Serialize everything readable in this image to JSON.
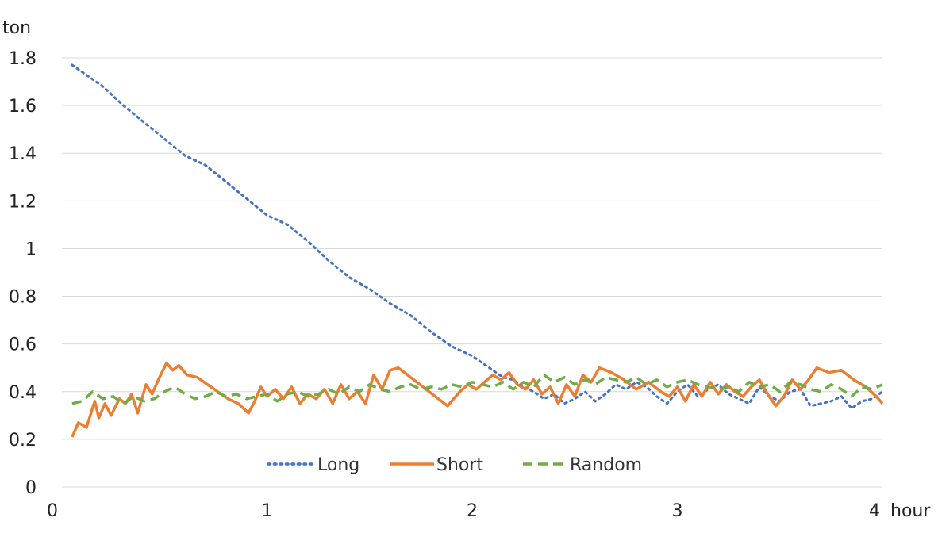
{
  "chart_data": {
    "type": "line",
    "title": "",
    "xlabel": "hour",
    "ylabel": "ton",
    "xlim": [
      0,
      4
    ],
    "ylim": [
      0,
      1.8
    ],
    "x_ticks": [
      {
        "value": 0,
        "label": "0"
      },
      {
        "value": 1,
        "label": "1"
      },
      {
        "value": 2,
        "label": "2"
      },
      {
        "value": 3,
        "label": "3"
      },
      {
        "value": 4,
        "label": "4"
      }
    ],
    "y_ticks": [
      {
        "value": 0,
        "label": "0"
      },
      {
        "value": 0.2,
        "label": "0.2"
      },
      {
        "value": 0.4,
        "label": "0.4"
      },
      {
        "value": 0.6,
        "label": "0.6"
      },
      {
        "value": 0.8,
        "label": "0.8"
      },
      {
        "value": 1.0,
        "label": "1"
      },
      {
        "value": 1.2,
        "label": "1.2"
      },
      {
        "value": 1.4,
        "label": "1.4"
      },
      {
        "value": 1.6,
        "label": "1.6"
      },
      {
        "value": 1.8,
        "label": "1.8"
      }
    ],
    "grid": "horizontal",
    "legend_position": "bottom",
    "series": [
      {
        "name": "Long",
        "color": "#4472C4",
        "style": "dotted",
        "points": [
          [
            0.05,
            1.77
          ],
          [
            0.1,
            1.74
          ],
          [
            0.2,
            1.68
          ],
          [
            0.3,
            1.6
          ],
          [
            0.4,
            1.53
          ],
          [
            0.5,
            1.46
          ],
          [
            0.6,
            1.39
          ],
          [
            0.7,
            1.35
          ],
          [
            0.8,
            1.28
          ],
          [
            0.9,
            1.21
          ],
          [
            1.0,
            1.14
          ],
          [
            1.1,
            1.1
          ],
          [
            1.2,
            1.03
          ],
          [
            1.3,
            0.95
          ],
          [
            1.4,
            0.88
          ],
          [
            1.5,
            0.83
          ],
          [
            1.6,
            0.77
          ],
          [
            1.7,
            0.72
          ],
          [
            1.8,
            0.65
          ],
          [
            1.9,
            0.59
          ],
          [
            2.0,
            0.55
          ],
          [
            2.05,
            0.52
          ],
          [
            2.1,
            0.49
          ],
          [
            2.15,
            0.46
          ],
          [
            2.2,
            0.45
          ],
          [
            2.25,
            0.42
          ],
          [
            2.3,
            0.4
          ],
          [
            2.35,
            0.37
          ],
          [
            2.4,
            0.39
          ],
          [
            2.45,
            0.35
          ],
          [
            2.5,
            0.37
          ],
          [
            2.55,
            0.4
          ],
          [
            2.6,
            0.36
          ],
          [
            2.65,
            0.39
          ],
          [
            2.7,
            0.43
          ],
          [
            2.75,
            0.41
          ],
          [
            2.8,
            0.44
          ],
          [
            2.85,
            0.42
          ],
          [
            2.9,
            0.38
          ],
          [
            2.95,
            0.35
          ],
          [
            3.0,
            0.4
          ],
          [
            3.05,
            0.43
          ],
          [
            3.1,
            0.38
          ],
          [
            3.15,
            0.41
          ],
          [
            3.2,
            0.43
          ],
          [
            3.25,
            0.39
          ],
          [
            3.3,
            0.37
          ],
          [
            3.35,
            0.35
          ],
          [
            3.4,
            0.42
          ],
          [
            3.45,
            0.38
          ],
          [
            3.5,
            0.36
          ],
          [
            3.55,
            0.4
          ],
          [
            3.6,
            0.41
          ],
          [
            3.65,
            0.34
          ],
          [
            3.7,
            0.35
          ],
          [
            3.75,
            0.36
          ],
          [
            3.8,
            0.38
          ],
          [
            3.85,
            0.33
          ],
          [
            3.9,
            0.36
          ],
          [
            3.95,
            0.37
          ],
          [
            4.0,
            0.4
          ]
        ]
      },
      {
        "name": "Short",
        "color": "#ED7D31",
        "style": "solid",
        "points": [
          [
            0.05,
            0.21
          ],
          [
            0.08,
            0.27
          ],
          [
            0.12,
            0.25
          ],
          [
            0.16,
            0.36
          ],
          [
            0.18,
            0.29
          ],
          [
            0.21,
            0.35
          ],
          [
            0.24,
            0.3
          ],
          [
            0.28,
            0.37
          ],
          [
            0.31,
            0.35
          ],
          [
            0.34,
            0.39
          ],
          [
            0.37,
            0.31
          ],
          [
            0.41,
            0.43
          ],
          [
            0.44,
            0.39
          ],
          [
            0.47,
            0.45
          ],
          [
            0.51,
            0.52
          ],
          [
            0.54,
            0.49
          ],
          [
            0.57,
            0.51
          ],
          [
            0.61,
            0.47
          ],
          [
            0.66,
            0.46
          ],
          [
            0.71,
            0.43
          ],
          [
            0.76,
            0.4
          ],
          [
            0.81,
            0.37
          ],
          [
            0.86,
            0.35
          ],
          [
            0.91,
            0.31
          ],
          [
            0.94,
            0.36
          ],
          [
            0.97,
            0.42
          ],
          [
            1.0,
            0.38
          ],
          [
            1.04,
            0.41
          ],
          [
            1.08,
            0.37
          ],
          [
            1.12,
            0.42
          ],
          [
            1.16,
            0.35
          ],
          [
            1.2,
            0.39
          ],
          [
            1.24,
            0.37
          ],
          [
            1.28,
            0.41
          ],
          [
            1.32,
            0.35
          ],
          [
            1.36,
            0.43
          ],
          [
            1.4,
            0.37
          ],
          [
            1.44,
            0.4
          ],
          [
            1.48,
            0.35
          ],
          [
            1.52,
            0.47
          ],
          [
            1.56,
            0.41
          ],
          [
            1.6,
            0.49
          ],
          [
            1.64,
            0.5
          ],
          [
            1.7,
            0.46
          ],
          [
            1.76,
            0.42
          ],
          [
            1.82,
            0.38
          ],
          [
            1.88,
            0.34
          ],
          [
            1.94,
            0.4
          ],
          [
            1.98,
            0.43
          ],
          [
            2.02,
            0.41
          ],
          [
            2.06,
            0.44
          ],
          [
            2.1,
            0.47
          ],
          [
            2.14,
            0.45
          ],
          [
            2.18,
            0.48
          ],
          [
            2.22,
            0.43
          ],
          [
            2.26,
            0.41
          ],
          [
            2.3,
            0.45
          ],
          [
            2.34,
            0.39
          ],
          [
            2.38,
            0.42
          ],
          [
            2.42,
            0.35
          ],
          [
            2.46,
            0.43
          ],
          [
            2.5,
            0.38
          ],
          [
            2.54,
            0.47
          ],
          [
            2.58,
            0.44
          ],
          [
            2.62,
            0.5
          ],
          [
            2.68,
            0.48
          ],
          [
            2.74,
            0.45
          ],
          [
            2.8,
            0.41
          ],
          [
            2.86,
            0.44
          ],
          [
            2.92,
            0.4
          ],
          [
            2.96,
            0.38
          ],
          [
            3.0,
            0.42
          ],
          [
            3.04,
            0.36
          ],
          [
            3.08,
            0.43
          ],
          [
            3.12,
            0.38
          ],
          [
            3.16,
            0.44
          ],
          [
            3.2,
            0.39
          ],
          [
            3.24,
            0.43
          ],
          [
            3.28,
            0.4
          ],
          [
            3.32,
            0.38
          ],
          [
            3.36,
            0.42
          ],
          [
            3.4,
            0.45
          ],
          [
            3.44,
            0.39
          ],
          [
            3.48,
            0.34
          ],
          [
            3.52,
            0.38
          ],
          [
            3.56,
            0.45
          ],
          [
            3.6,
            0.41
          ],
          [
            3.64,
            0.45
          ],
          [
            3.68,
            0.5
          ],
          [
            3.74,
            0.48
          ],
          [
            3.8,
            0.49
          ],
          [
            3.86,
            0.45
          ],
          [
            3.92,
            0.42
          ],
          [
            3.97,
            0.38
          ],
          [
            4.0,
            0.35
          ]
        ]
      },
      {
        "name": "Random",
        "color": "#70AD47",
        "style": "dashed",
        "points": [
          [
            0.05,
            0.35
          ],
          [
            0.1,
            0.36
          ],
          [
            0.15,
            0.4
          ],
          [
            0.2,
            0.37
          ],
          [
            0.25,
            0.38
          ],
          [
            0.3,
            0.35
          ],
          [
            0.35,
            0.38
          ],
          [
            0.4,
            0.36
          ],
          [
            0.45,
            0.37
          ],
          [
            0.5,
            0.4
          ],
          [
            0.55,
            0.42
          ],
          [
            0.6,
            0.39
          ],
          [
            0.65,
            0.37
          ],
          [
            0.7,
            0.38
          ],
          [
            0.75,
            0.4
          ],
          [
            0.8,
            0.38
          ],
          [
            0.85,
            0.39
          ],
          [
            0.9,
            0.37
          ],
          [
            0.95,
            0.38
          ],
          [
            1.0,
            0.39
          ],
          [
            1.05,
            0.36
          ],
          [
            1.1,
            0.39
          ],
          [
            1.15,
            0.4
          ],
          [
            1.2,
            0.38
          ],
          [
            1.25,
            0.39
          ],
          [
            1.3,
            0.41
          ],
          [
            1.35,
            0.39
          ],
          [
            1.4,
            0.42
          ],
          [
            1.45,
            0.4
          ],
          [
            1.5,
            0.43
          ],
          [
            1.55,
            0.41
          ],
          [
            1.6,
            0.4
          ],
          [
            1.65,
            0.42
          ],
          [
            1.7,
            0.43
          ],
          [
            1.75,
            0.41
          ],
          [
            1.8,
            0.42
          ],
          [
            1.85,
            0.41
          ],
          [
            1.9,
            0.43
          ],
          [
            1.95,
            0.42
          ],
          [
            2.0,
            0.44
          ],
          [
            2.05,
            0.43
          ],
          [
            2.1,
            0.42
          ],
          [
            2.15,
            0.44
          ],
          [
            2.2,
            0.41
          ],
          [
            2.25,
            0.44
          ],
          [
            2.3,
            0.42
          ],
          [
            2.35,
            0.47
          ],
          [
            2.4,
            0.44
          ],
          [
            2.45,
            0.46
          ],
          [
            2.5,
            0.43
          ],
          [
            2.55,
            0.45
          ],
          [
            2.6,
            0.43
          ],
          [
            2.65,
            0.46
          ],
          [
            2.7,
            0.45
          ],
          [
            2.75,
            0.44
          ],
          [
            2.8,
            0.46
          ],
          [
            2.85,
            0.43
          ],
          [
            2.9,
            0.45
          ],
          [
            2.95,
            0.42
          ],
          [
            3.0,
            0.44
          ],
          [
            3.05,
            0.45
          ],
          [
            3.1,
            0.43
          ],
          [
            3.15,
            0.42
          ],
          [
            3.2,
            0.41
          ],
          [
            3.25,
            0.42
          ],
          [
            3.3,
            0.4
          ],
          [
            3.35,
            0.44
          ],
          [
            3.4,
            0.42
          ],
          [
            3.45,
            0.43
          ],
          [
            3.5,
            0.4
          ],
          [
            3.55,
            0.44
          ],
          [
            3.6,
            0.43
          ],
          [
            3.65,
            0.41
          ],
          [
            3.7,
            0.4
          ],
          [
            3.75,
            0.43
          ],
          [
            3.8,
            0.41
          ],
          [
            3.85,
            0.38
          ],
          [
            3.9,
            0.42
          ],
          [
            3.95,
            0.41
          ],
          [
            4.0,
            0.43
          ]
        ]
      }
    ]
  }
}
